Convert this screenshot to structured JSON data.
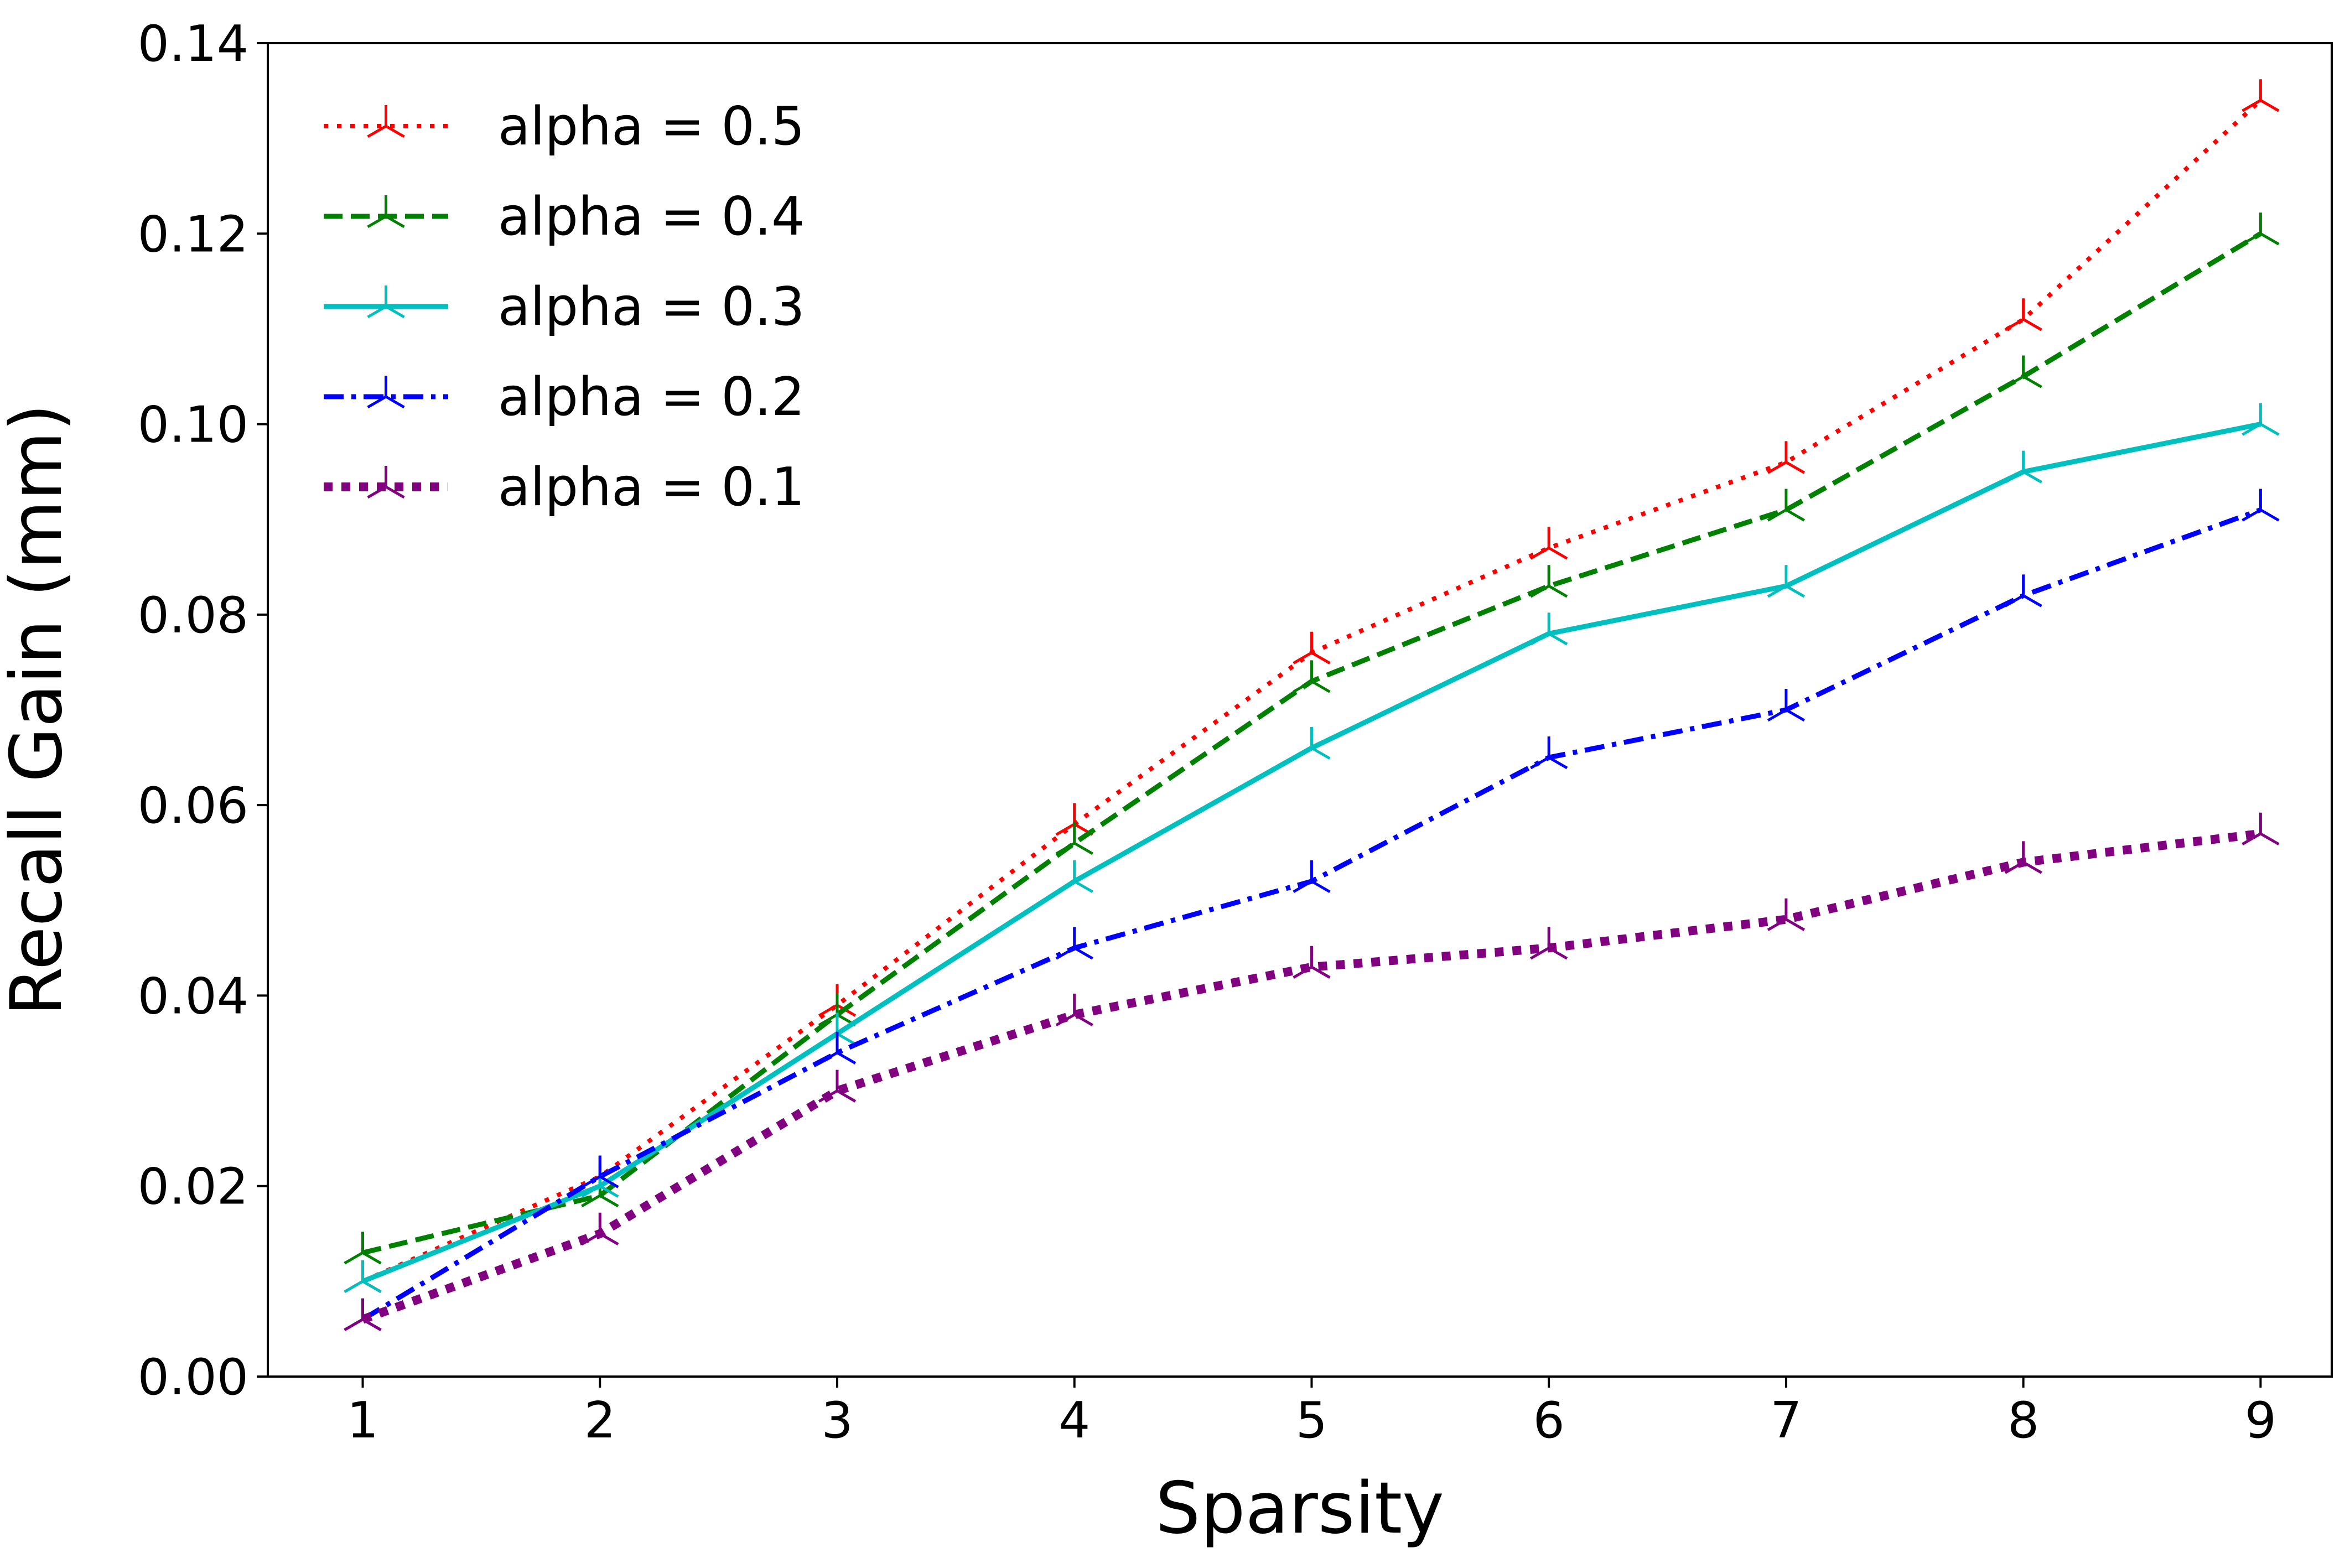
{
  "chart_data": {
    "type": "line",
    "xlabel": "Sparsity",
    "ylabel": "Recall Gain (mm)",
    "x": [
      1,
      2,
      3,
      4,
      5,
      6,
      7,
      8,
      9
    ],
    "xlim": [
      0.6,
      9.3
    ],
    "ylim": [
      0,
      0.14
    ],
    "xticks": [
      "1",
      "2",
      "3",
      "4",
      "5",
      "6",
      "7",
      "8",
      "9"
    ],
    "yticks": [
      "0.00",
      "0.02",
      "0.04",
      "0.06",
      "0.08",
      "0.10",
      "0.12",
      "0.14"
    ],
    "legend_position": "top-left",
    "grid": false,
    "series": [
      {
        "name": "alpha = 0.5",
        "color": "#ff0000",
        "style": "dotted",
        "marker": "tri_down",
        "values": [
          0.01,
          0.021,
          0.039,
          0.058,
          0.076,
          0.087,
          0.096,
          0.111,
          0.134
        ]
      },
      {
        "name": "alpha = 0.4",
        "color": "#008000",
        "style": "dashed",
        "marker": "tri_down",
        "values": [
          0.013,
          0.019,
          0.038,
          0.056,
          0.073,
          0.083,
          0.091,
          0.105,
          0.12
        ]
      },
      {
        "name": "alpha = 0.3",
        "color": "#00bfbf",
        "style": "solid",
        "marker": "tri_down",
        "values": [
          0.01,
          0.02,
          0.036,
          0.052,
          0.066,
          0.078,
          0.083,
          0.095,
          0.1
        ]
      },
      {
        "name": "alpha = 0.2",
        "color": "#0000ff",
        "style": "dashdot",
        "marker": "tri_down",
        "values": [
          0.006,
          0.021,
          0.034,
          0.045,
          0.052,
          0.065,
          0.07,
          0.082,
          0.091
        ]
      },
      {
        "name": "alpha = 0.1",
        "color": "#800080",
        "style": "thick-dotted",
        "marker": "tri_down",
        "values": [
          0.006,
          0.015,
          0.03,
          0.038,
          0.043,
          0.045,
          0.048,
          0.054,
          0.057
        ]
      }
    ]
  }
}
